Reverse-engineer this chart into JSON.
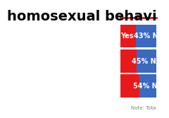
{
  "bars": [
    {
      "label": "Yes",
      "red_pct": 43,
      "blue_pct": 57,
      "note": "43% N"
    },
    {
      "label": "",
      "red_pct": 45,
      "blue_pct": 55,
      "note": "45% No"
    },
    {
      "label": "",
      "red_pct": 54,
      "blue_pct": 46,
      "note": "54% No"
    }
  ],
  "red_color": "#e8191a",
  "blue_color": "#3a6abf",
  "bg_color": "#ffffff",
  "title_text": "homosexual behavi",
  "title_fontsize": 14,
  "bar_label_fontsize": 7,
  "note_text": "Note: Tota",
  "note_fontsize": 5,
  "top_line_color": "#e8191a",
  "bar_height": 0.22
}
